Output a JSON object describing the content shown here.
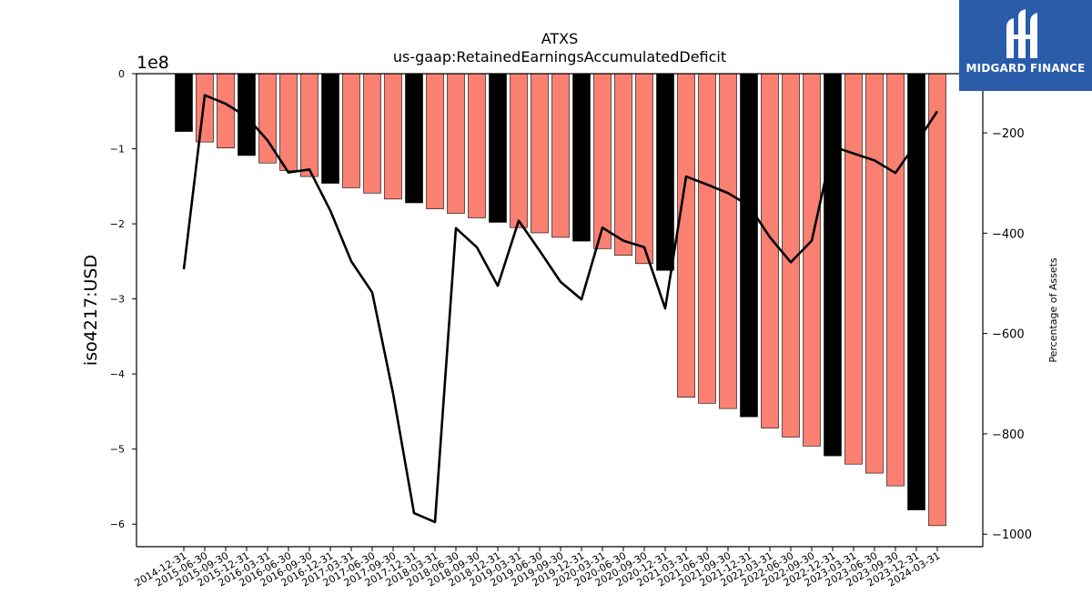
{
  "brand": {
    "name": "MIDGARD FINANCE",
    "color": "#2a5caa",
    "icon": "midgard-logo-icon"
  },
  "chart_data": {
    "type": "bar",
    "title": "ATXS",
    "subtitle": "us-gaap:RetainedEarningsAccumulatedDeficit",
    "ylabel": "iso4217:USD",
    "y_scale_label": "1e8",
    "y2label": "Percentage of Assets",
    "ylim": [
      -6.3,
      0
    ],
    "yticks": [
      0,
      -1,
      -2,
      -3,
      -4,
      -5,
      -6
    ],
    "y2lim": [
      -1025,
      -82
    ],
    "y2ticks": [
      -200,
      -400,
      -600,
      -800,
      -1000
    ],
    "grid": false,
    "categories": [
      "2014-12-31",
      "2015-06-30",
      "2015-09-30",
      "2015-12-31",
      "2016-03-31",
      "2016-06-30",
      "2016-09-30",
      "2016-12-31",
      "2017-03-31",
      "2017-06-30",
      "2017-09-30",
      "2017-12-31",
      "2018-03-31",
      "2018-06-30",
      "2018-09-30",
      "2018-12-31",
      "2019-03-31",
      "2019-06-30",
      "2019-09-30",
      "2019-12-31",
      "2020-03-31",
      "2020-06-30",
      "2020-09-30",
      "2020-12-31",
      "2021-03-31",
      "2021-06-30",
      "2021-09-30",
      "2021-12-31",
      "2022-03-31",
      "2022-06-30",
      "2022-09-30",
      "2022-12-31",
      "2023-03-31",
      "2023-06-30",
      "2023-09-30",
      "2023-12-31",
      "2024-03-31"
    ],
    "bar_colors": {
      "annual": "#000000",
      "quarterly": "#fa8072"
    },
    "line_color": "#000000",
    "series": [
      {
        "kind": "bar",
        "unit_multiplier": "1e8",
        "values": [
          -0.77,
          -0.91,
          -0.99,
          -1.09,
          -1.19,
          -1.29,
          -1.37,
          -1.46,
          -1.52,
          -1.59,
          -1.67,
          -1.72,
          -1.8,
          -1.86,
          -1.92,
          -1.98,
          -2.05,
          -2.12,
          -2.18,
          -2.23,
          -2.33,
          -2.42,
          -2.53,
          -2.62,
          -4.31,
          -4.39,
          -4.46,
          -4.57,
          -4.72,
          -4.84,
          -4.96,
          -5.09,
          -5.2,
          -5.32,
          -5.49,
          -5.81,
          -6.02
        ],
        "period": [
          "annual",
          "quarterly",
          "quarterly",
          "annual",
          "quarterly",
          "quarterly",
          "quarterly",
          "annual",
          "quarterly",
          "quarterly",
          "quarterly",
          "annual",
          "quarterly",
          "quarterly",
          "quarterly",
          "annual",
          "quarterly",
          "quarterly",
          "quarterly",
          "annual",
          "quarterly",
          "quarterly",
          "quarterly",
          "annual",
          "quarterly",
          "quarterly",
          "quarterly",
          "annual",
          "quarterly",
          "quarterly",
          "quarterly",
          "annual",
          "quarterly",
          "quarterly",
          "quarterly",
          "annual",
          "quarterly"
        ]
      },
      {
        "kind": "line",
        "axis": "right",
        "values": [
          -472,
          -125,
          -142,
          -168,
          -215,
          -279,
          -273,
          -355,
          -456,
          -518,
          -720,
          -958,
          -976,
          -390,
          -428,
          -505,
          -375,
          -435,
          -497,
          -532,
          -389,
          -415,
          -428,
          -550,
          -287,
          -303,
          -320,
          -345,
          -408,
          -458,
          -415,
          -227,
          -241,
          -255,
          -280,
          -220,
          -157
        ]
      }
    ]
  }
}
